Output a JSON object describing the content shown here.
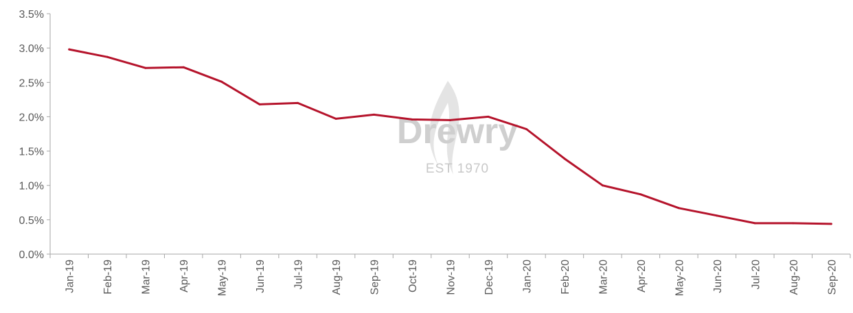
{
  "chart_data": {
    "type": "line",
    "title": "",
    "xlabel": "",
    "ylabel": "",
    "categories": [
      "Jan-19",
      "Feb-19",
      "Mar-19",
      "Apr-19",
      "May-19",
      "Jun-19",
      "Jul-19",
      "Aug-19",
      "Sep-19",
      "Oct-19",
      "Nov-19",
      "Dec-19",
      "Jan-20",
      "Feb-20",
      "Mar-20",
      "Apr-20",
      "May-20",
      "Jun-20",
      "Jul-20",
      "Aug-20",
      "Sep-20"
    ],
    "series": [
      {
        "values": [
          2.98,
          2.87,
          2.71,
          2.72,
          2.51,
          2.18,
          2.2,
          1.97,
          2.03,
          1.96,
          1.95,
          2.0,
          1.82,
          1.39,
          1.0,
          0.87,
          0.67,
          0.56,
          0.45,
          0.45,
          0.44
        ],
        "color": "#b5132b"
      }
    ],
    "ylim": [
      0,
      3.5
    ],
    "yticks": [
      "0.0%",
      "0.5%",
      "1.0%",
      "1.5%",
      "2.0%",
      "2.5%",
      "3.0%",
      "3.5%"
    ],
    "grid": false,
    "legend": "none"
  },
  "watermark": {
    "brand": "Drewry",
    "tagline": "EST 1970",
    "color": "#c8c8c8"
  }
}
